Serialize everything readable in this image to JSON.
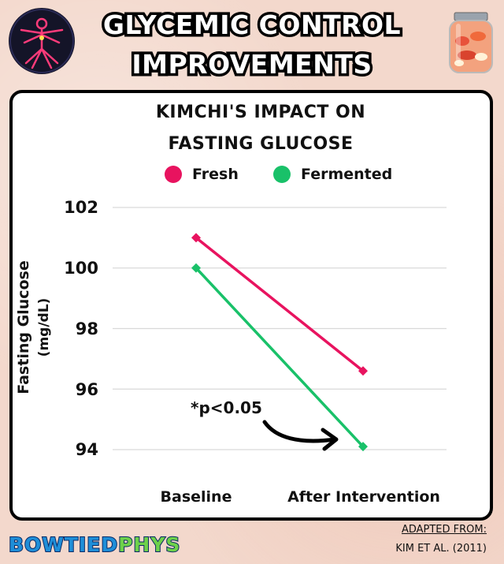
{
  "header": {
    "title_line1": "GLYCEMIC CONTROL",
    "title_line2": "IMPROVEMENTS"
  },
  "icons": {
    "left": "vitruvian-body-icon",
    "right": "kimchi-jar-icon"
  },
  "colors": {
    "fresh": "#e8135f",
    "fermented": "#19c169"
  },
  "chart_data": {
    "type": "line",
    "title_line1": "KIMCHI'S IMPACT ON",
    "title_line2": "FASTING GLUCOSE",
    "ylabel": "Fasting Glucose",
    "ylabel_unit": "(mg/dL)",
    "xlabel": "",
    "categories": [
      "Baseline",
      "After Intervention"
    ],
    "ylim": [
      94,
      102
    ],
    "yticks": [
      "102",
      "100",
      "98",
      "96",
      "94"
    ],
    "grid": true,
    "legend_position": "top",
    "series": [
      {
        "name": "Fresh",
        "values": [
          101.0,
          96.6
        ],
        "color": "#e8135f"
      },
      {
        "name": "Fermented",
        "values": [
          100.0,
          94.1
        ],
        "color": "#19c169"
      }
    ],
    "annotation": "*p<0.05"
  },
  "footer": {
    "brand_part1": "BOWTIED",
    "brand_part2": "PHYS",
    "source_line1": "ADAPTED FROM:",
    "source_line2": "KIM ET AL. (2011)"
  }
}
